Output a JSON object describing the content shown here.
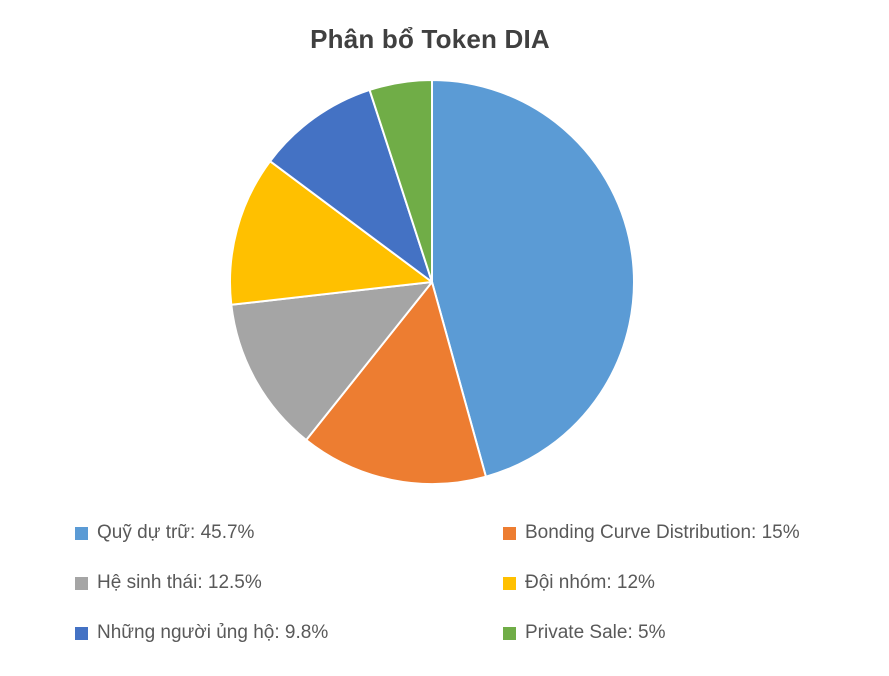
{
  "page": {
    "background": "#ffffff"
  },
  "chart_data": {
    "type": "pie",
    "title": "Phân bổ Token DIA",
    "legend_position": "bottom",
    "legend_columns": 2,
    "start_angle_deg": 0,
    "direction": "clockwise",
    "segments": [
      {
        "label": "Quỹ dự trữ",
        "value": 45.7,
        "display": "45.7%",
        "legend_text": "Quỹ dự trữ: 45.7%",
        "color": "#5B9BD5"
      },
      {
        "label": "Bonding Curve Distribution",
        "value": 15,
        "display": "15%",
        "legend_text": "Bonding Curve Distribution: 15%",
        "color": "#ED7D31"
      },
      {
        "label": "Hệ sinh thái",
        "value": 12.5,
        "display": "12.5%",
        "legend_text": "Hệ sinh thái: 12.5%",
        "color": "#A5A5A5"
      },
      {
        "label": "Đội nhóm",
        "value": 12,
        "display": "12%",
        "legend_text": "Đội nhóm: 12%",
        "color": "#FFC000"
      },
      {
        "label": "Những người ủng hộ",
        "value": 9.8,
        "display": "9.8%",
        "legend_text": "Những người ủng hộ: 9.8%",
        "color": "#4472C4"
      },
      {
        "label": "Private Sale",
        "value": 5,
        "display": "5%",
        "legend_text": "Private Sale: 5%",
        "color": "#70AD47"
      }
    ],
    "colors": {
      "title_text": "#404040",
      "legend_text": "#595959",
      "slice_border": "#FFFFFF"
    }
  }
}
